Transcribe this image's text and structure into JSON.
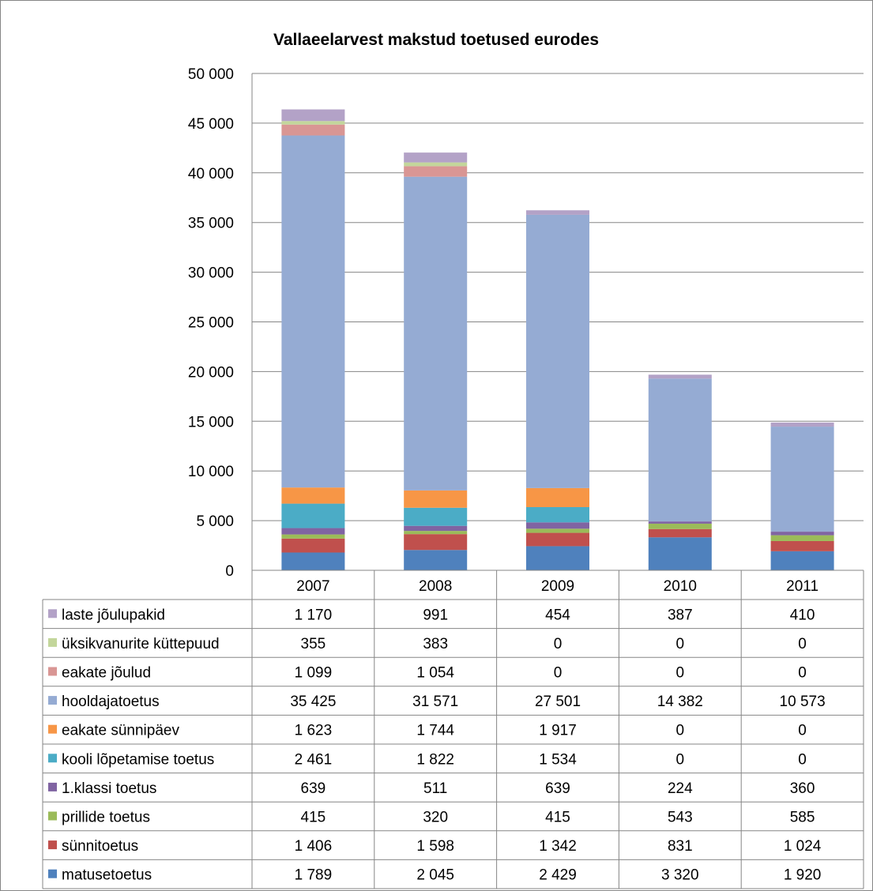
{
  "chart_data": {
    "type": "bar",
    "stacked": true,
    "title": "Vallaeelarvest makstud toetused eurodes",
    "categories": [
      "2007",
      "2008",
      "2009",
      "2010",
      "2011"
    ],
    "ylim": [
      0,
      50000
    ],
    "yticks": [
      0,
      5000,
      10000,
      15000,
      20000,
      25000,
      30000,
      35000,
      40000,
      45000,
      50000
    ],
    "ytick_labels": [
      "0",
      "5 000",
      "10 000",
      "15 000",
      "20 000",
      "25 000",
      "30 000",
      "35 000",
      "40 000",
      "45 000",
      "50 000"
    ],
    "grid": true,
    "legend": "data-table",
    "series": [
      {
        "name": "matusetoetus",
        "color": "#4F81BD",
        "values": [
          1789,
          2045,
          2429,
          3320,
          1920
        ],
        "labels": [
          "1 789",
          "2 045",
          "2 429",
          "3 320",
          "1 920"
        ]
      },
      {
        "name": "sünnitoetus",
        "color": "#C0504D",
        "values": [
          1406,
          1598,
          1342,
          831,
          1024
        ],
        "labels": [
          "1 406",
          "1 598",
          "1 342",
          "831",
          "1 024"
        ]
      },
      {
        "name": "prillide toetus",
        "color": "#9BBB59",
        "values": [
          415,
          320,
          415,
          543,
          585
        ],
        "labels": [
          "415",
          "320",
          "415",
          "543",
          "585"
        ]
      },
      {
        "name": "1.klassi toetus",
        "color": "#8064A2",
        "values": [
          639,
          511,
          639,
          224,
          360
        ],
        "labels": [
          "639",
          "511",
          "639",
          "224",
          "360"
        ]
      },
      {
        "name": "kooli lõpetamise toetus",
        "color": "#4BACC6",
        "values": [
          2461,
          1822,
          1534,
          0,
          0
        ],
        "labels": [
          "2 461",
          "1 822",
          "1 534",
          "0",
          "0"
        ]
      },
      {
        "name": "eakate sünnipäev",
        "color": "#F79646",
        "values": [
          1623,
          1744,
          1917,
          0,
          0
        ],
        "labels": [
          "1 623",
          "1 744",
          "1 917",
          "0",
          "0"
        ]
      },
      {
        "name": "hooldajatoetus",
        "color": "#95ABD3",
        "values": [
          35425,
          31571,
          27501,
          14382,
          10573
        ],
        "labels": [
          "35 425",
          "31 571",
          "27 501",
          "14 382",
          "10 573"
        ]
      },
      {
        "name": "eakate jõulud",
        "color": "#D99694",
        "values": [
          1099,
          1054,
          0,
          0,
          0
        ],
        "labels": [
          "1 099",
          "1 054",
          "0",
          "0",
          "0"
        ]
      },
      {
        "name": "üksikvanurite küttepuud",
        "color": "#C3D69B",
        "values": [
          355,
          383,
          0,
          0,
          0
        ],
        "labels": [
          "355",
          "383",
          "0",
          "0",
          "0"
        ]
      },
      {
        "name": "laste jõulupakid",
        "color": "#B3A2C7",
        "values": [
          1170,
          991,
          454,
          387,
          410
        ],
        "labels": [
          "1 170",
          "991",
          "454",
          "387",
          "410"
        ]
      }
    ]
  }
}
